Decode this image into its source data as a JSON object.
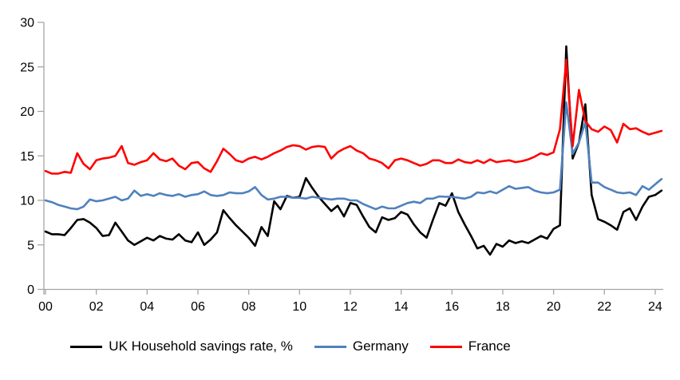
{
  "chart_data": {
    "type": "line",
    "title": "",
    "xlabel": "",
    "ylabel": "",
    "x_start_year": 2000,
    "x_step_years": 0.25,
    "x_tick_labels": [
      "00",
      "02",
      "04",
      "06",
      "08",
      "10",
      "12",
      "14",
      "16",
      "18",
      "20",
      "22",
      "24"
    ],
    "x_tick_interval_years": 2,
    "y_ticks": [
      "0",
      "5",
      "10",
      "15",
      "20",
      "25",
      "30"
    ],
    "ylim": [
      0,
      30
    ],
    "grid": false,
    "legend_position": "bottom",
    "axis_color": "#A6A6A6",
    "series": [
      {
        "name": "UK Household savings rate, %",
        "color": "#000000",
        "values": [
          6.5,
          6.2,
          6.2,
          6.1,
          6.9,
          7.8,
          7.9,
          7.5,
          6.9,
          6.0,
          6.1,
          7.5,
          6.5,
          5.5,
          5.0,
          5.4,
          5.8,
          5.5,
          6.0,
          5.7,
          5.6,
          6.2,
          5.5,
          5.3,
          6.4,
          5.0,
          5.6,
          6.4,
          8.9,
          8.0,
          7.2,
          6.5,
          5.8,
          4.9,
          7.0,
          6.0,
          9.9,
          9.0,
          10.5,
          10.3,
          10.4,
          12.5,
          11.4,
          10.4,
          9.6,
          8.8,
          9.4,
          8.2,
          9.7,
          9.5,
          8.2,
          7.0,
          6.4,
          8.1,
          7.8,
          8.0,
          8.7,
          8.4,
          7.3,
          6.4,
          5.8,
          7.8,
          9.7,
          9.4,
          10.8,
          8.7,
          7.3,
          6.0,
          4.6,
          4.9,
          3.9,
          5.1,
          4.8,
          5.5,
          5.2,
          5.4,
          5.2,
          5.6,
          6.0,
          5.7,
          6.8,
          7.2,
          27.3,
          14.7,
          16.5,
          20.8,
          10.6,
          7.9,
          7.6,
          7.2,
          6.7,
          8.7,
          9.1,
          7.8,
          9.3,
          10.4,
          10.6,
          11.1
        ]
      },
      {
        "name": "Germany",
        "color": "#4F81BD",
        "values": [
          10.0,
          9.8,
          9.5,
          9.3,
          9.1,
          9.0,
          9.3,
          10.1,
          9.9,
          10.0,
          10.2,
          10.4,
          10.0,
          10.2,
          11.1,
          10.5,
          10.7,
          10.5,
          10.8,
          10.6,
          10.5,
          10.7,
          10.4,
          10.6,
          10.7,
          11.0,
          10.6,
          10.5,
          10.6,
          10.9,
          10.8,
          10.8,
          11.0,
          11.5,
          10.6,
          10.1,
          10.2,
          10.4,
          10.4,
          10.3,
          10.3,
          10.2,
          10.4,
          10.3,
          10.2,
          10.1,
          10.2,
          10.2,
          10.0,
          10.0,
          9.6,
          9.3,
          9.0,
          9.3,
          9.1,
          9.1,
          9.4,
          9.7,
          9.85,
          9.7,
          10.2,
          10.2,
          10.45,
          10.4,
          10.4,
          10.3,
          10.2,
          10.4,
          10.9,
          10.8,
          11.0,
          10.8,
          11.2,
          11.6,
          11.3,
          11.4,
          11.5,
          11.1,
          10.9,
          10.8,
          10.9,
          11.2,
          21.0,
          15.2,
          16.5,
          18.8,
          12.0,
          12.0,
          11.5,
          11.2,
          10.9,
          10.8,
          10.9,
          10.6,
          11.6,
          11.2,
          11.8,
          12.4
        ]
      },
      {
        "name": "France",
        "color": "#FF0000",
        "values": [
          13.3,
          13.0,
          13.0,
          13.2,
          13.1,
          15.3,
          14.1,
          13.5,
          14.5,
          14.7,
          14.8,
          15.0,
          16.1,
          14.2,
          14.0,
          14.3,
          14.5,
          15.3,
          14.6,
          14.4,
          14.7,
          13.9,
          13.5,
          14.2,
          14.3,
          13.6,
          13.2,
          14.4,
          15.8,
          15.2,
          14.5,
          14.3,
          14.7,
          14.9,
          14.6,
          14.9,
          15.3,
          15.6,
          16.0,
          16.2,
          16.1,
          15.7,
          16.0,
          16.1,
          16.0,
          14.7,
          15.4,
          15.8,
          16.1,
          15.6,
          15.3,
          14.7,
          14.5,
          14.2,
          13.6,
          14.5,
          14.7,
          14.5,
          14.2,
          13.9,
          14.1,
          14.5,
          14.5,
          14.2,
          14.2,
          14.6,
          14.3,
          14.2,
          14.5,
          14.2,
          14.6,
          14.3,
          14.4,
          14.5,
          14.3,
          14.4,
          14.6,
          14.9,
          15.3,
          15.1,
          15.4,
          18.0,
          25.8,
          16.1,
          22.4,
          18.9,
          18.0,
          17.7,
          18.3,
          17.9,
          16.5,
          18.6,
          18.0,
          18.1,
          17.7,
          17.4,
          17.6,
          17.8
        ]
      }
    ]
  }
}
